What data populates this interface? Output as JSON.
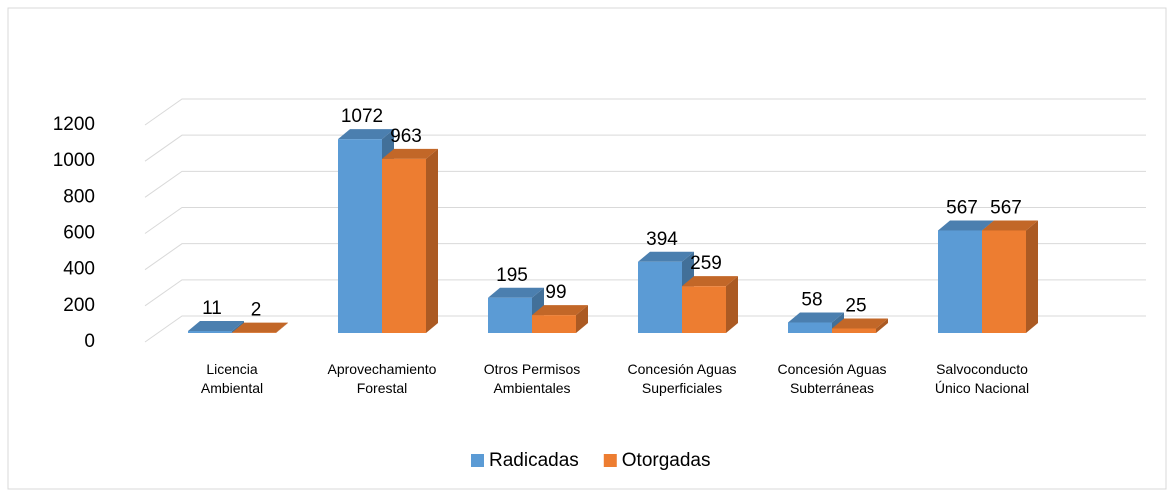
{
  "chart_data": {
    "type": "bar3d",
    "categories": [
      "Licencia\nAmbiental",
      "Aprovechamiento\nForestal",
      "Otros Permisos\nAmbientales",
      "Concesión Aguas\nSuperficiales",
      "Concesión Aguas\nSubterráneas",
      "Salvoconducto\nÚnico Nacional"
    ],
    "series": [
      {
        "name": "Radicadas",
        "color": "#5b9bd5",
        "values": [
          11,
          1072,
          195,
          394,
          58,
          567
        ]
      },
      {
        "name": "Otorgadas",
        "color": "#ed7d31",
        "values": [
          2,
          963,
          99,
          259,
          25,
          567
        ]
      }
    ],
    "ylim": [
      0,
      1200
    ],
    "yticks": [
      0,
      200,
      400,
      600,
      800,
      1000,
      1200
    ],
    "grid": true,
    "legend": "bottom"
  }
}
